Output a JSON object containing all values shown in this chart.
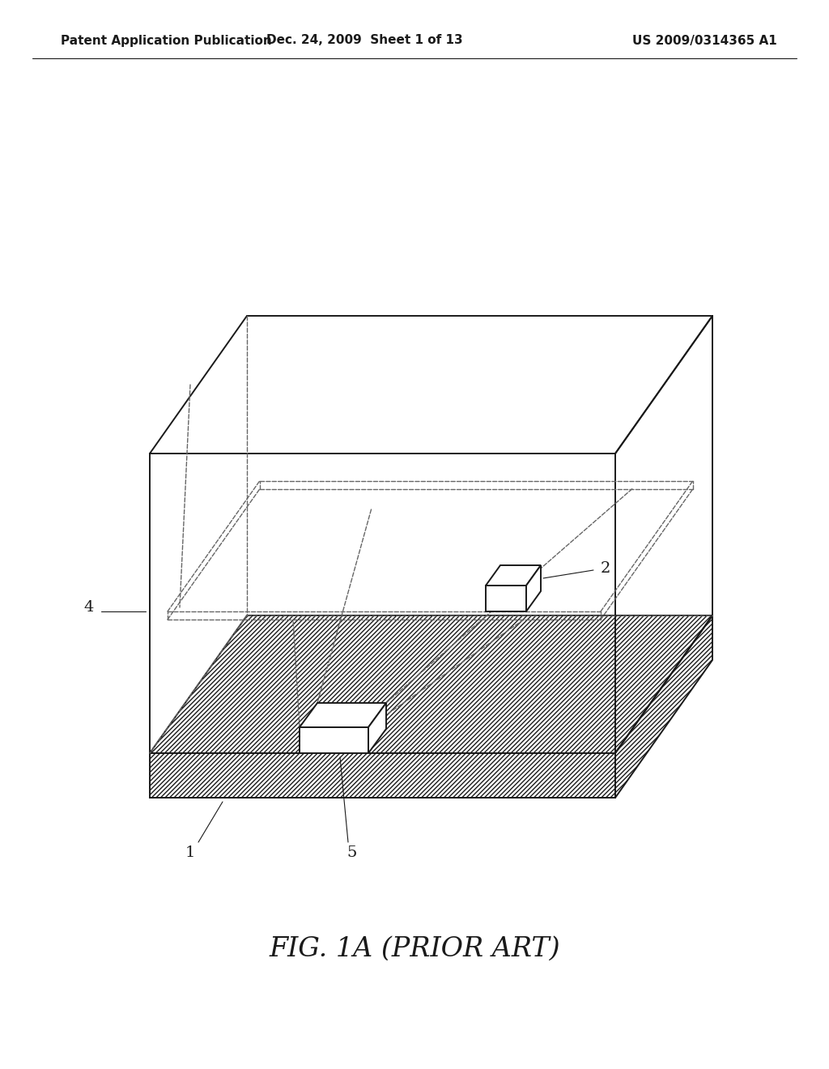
{
  "bg_color": "#ffffff",
  "line_color": "#1a1a1a",
  "dashed_color": "#666666",
  "header_left": "Patent Application Publication",
  "header_mid": "Dec. 24, 2009  Sheet 1 of 13",
  "header_right": "US 2009/0314365 A1",
  "fig_label": "FIG. 1A (PRIOR ART)",
  "label_1": "1",
  "label_2": "2",
  "label_4": "4",
  "label_5": "5",
  "lw_main": 1.4,
  "lw_dashed": 1.0,
  "lw_header": 0.8
}
